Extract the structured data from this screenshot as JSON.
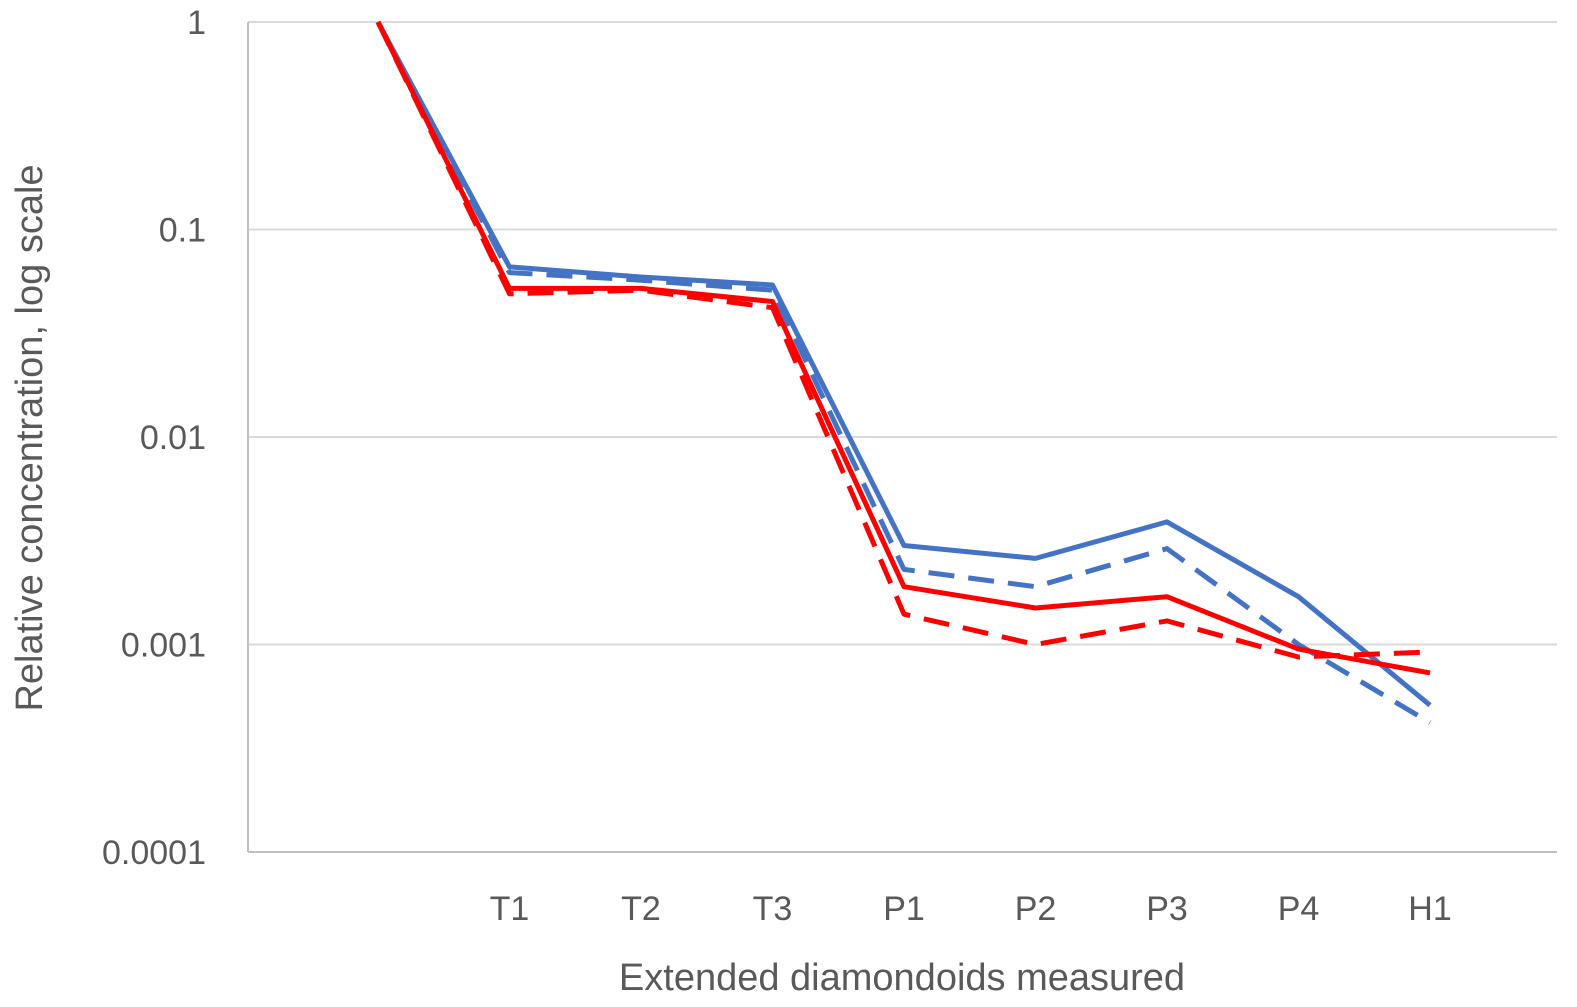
{
  "chart_data": {
    "type": "line",
    "title": "",
    "xlabel": "Extended diamondoids measured",
    "ylabel": "Relative concentration, log scale",
    "yscale": "log",
    "ylim": [
      0.0001,
      1
    ],
    "yticks": [
      {
        "value": 1,
        "label": "1"
      },
      {
        "value": 0.1,
        "label": "0.1"
      },
      {
        "value": 0.01,
        "label": "0.01"
      },
      {
        "value": 0.001,
        "label": "0.001"
      },
      {
        "value": 0.0001,
        "label": "0.0001"
      }
    ],
    "categories": [
      "",
      "T1",
      "T2",
      "T3",
      "P1",
      "P2",
      "P3",
      "P4",
      "H1"
    ],
    "grid": true,
    "legend": "none",
    "series": [
      {
        "name": "blue-solid",
        "color": "#4472C4",
        "dash": "solid",
        "values": [
          1,
          0.066,
          0.059,
          0.054,
          0.003,
          0.0026,
          0.0039,
          0.0017,
          0.00051
        ]
      },
      {
        "name": "blue-dashed",
        "color": "#4472C4",
        "dash": "dashed",
        "values": [
          1,
          0.062,
          0.057,
          0.051,
          0.0023,
          0.0019,
          0.0029,
          0.001,
          0.00042
        ]
      },
      {
        "name": "red-solid",
        "color": "#FF0000",
        "dash": "solid",
        "values": [
          1,
          0.052,
          0.052,
          0.045,
          0.0019,
          0.0015,
          0.0017,
          0.00095,
          0.00073
        ]
      },
      {
        "name": "red-dashed",
        "color": "#FF0000",
        "dash": "dashed",
        "values": [
          1,
          0.049,
          0.051,
          0.042,
          0.0014,
          0.001,
          0.0013,
          0.00087,
          0.00092
        ]
      }
    ]
  }
}
